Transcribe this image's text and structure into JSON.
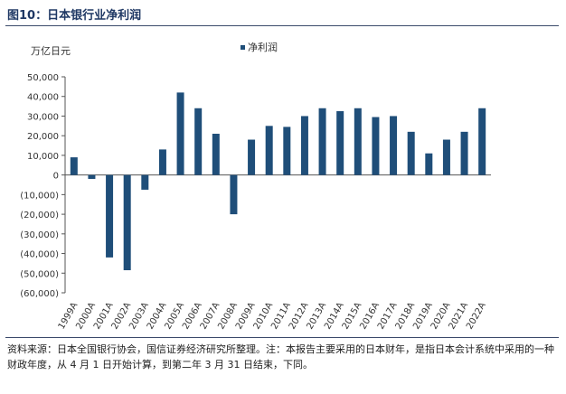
{
  "title": "图10：日本银行业净利润",
  "footnote": "资料来源：日本全国银行协会，国信证券经济研究所整理。注：本报告主要采用的日本财年，是指日本会计系统中采用的一种财政年度，从 4 月 1 日开始计算，到第二年 3 月 31 日结束，下同。",
  "chart_data": {
    "type": "bar",
    "title": "",
    "unit_label": "万亿日元",
    "legend": [
      "净利润"
    ],
    "categories": [
      "1999A",
      "2000A",
      "2001A",
      "2002A",
      "2003A",
      "2004A",
      "2005A",
      "2006A",
      "2007A",
      "2008A",
      "2009A",
      "2010A",
      "2011A",
      "2012A",
      "2013A",
      "2014A",
      "2015A",
      "2016A",
      "2017A",
      "2018A",
      "2019A",
      "2020A",
      "2021A",
      "2022A"
    ],
    "series": [
      {
        "name": "净利润",
        "values": [
          9000,
          -2000,
          -42000,
          -48500,
          -7500,
          13000,
          42000,
          34000,
          21000,
          -20000,
          18000,
          25000,
          24500,
          30000,
          34000,
          32500,
          34000,
          29500,
          30000,
          22000,
          11000,
          18000,
          22000,
          34000
        ]
      }
    ],
    "yticks": [
      "50,000",
      "40,000",
      "30,000",
      "20,000",
      "10,000",
      "0",
      "(10,000)",
      "(20,000)",
      "(30,000)",
      "(40,000)",
      "(50,000)",
      "(60,000)"
    ],
    "ylim": [
      -60000,
      50000
    ],
    "color": "#1f4e79"
  }
}
